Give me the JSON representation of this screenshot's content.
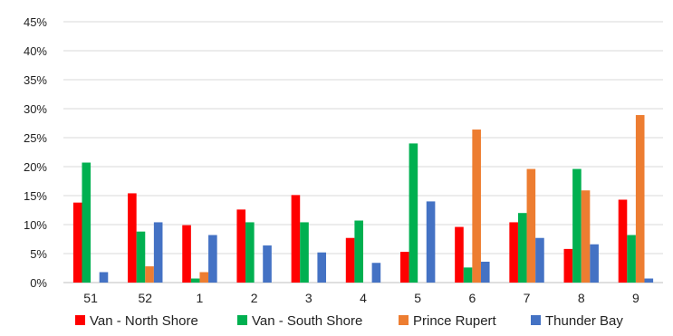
{
  "chart_data": {
    "type": "bar",
    "categories": [
      "51",
      "52",
      "1",
      "2",
      "3",
      "4",
      "5",
      "6",
      "7",
      "8",
      "9"
    ],
    "series": [
      {
        "name": "Van - North Shore",
        "color": "#ff0000",
        "values": [
          13.8,
          15.4,
          9.9,
          12.6,
          15.1,
          7.7,
          5.3,
          9.6,
          10.4,
          5.8,
          14.3
        ]
      },
      {
        "name": "Van - South Shore",
        "color": "#00b050",
        "values": [
          20.7,
          8.8,
          0.7,
          10.4,
          10.4,
          10.7,
          24.0,
          2.6,
          12.0,
          19.6,
          8.2
        ]
      },
      {
        "name": "Prince Rupert",
        "color": "#ed7d31",
        "values": [
          0,
          2.8,
          1.8,
          0,
          0,
          0,
          0,
          26.4,
          19.6,
          15.9,
          28.9
        ]
      },
      {
        "name": "Thunder Bay",
        "color": "#4472c4",
        "values": [
          1.8,
          10.4,
          8.2,
          6.4,
          5.2,
          3.4,
          14.0,
          3.6,
          7.7,
          6.6,
          0.7
        ]
      }
    ],
    "ylim": [
      0,
      45
    ],
    "y_ticks": [
      0,
      5,
      10,
      15,
      20,
      25,
      30,
      35,
      40,
      45
    ],
    "y_tick_labels": [
      "0%",
      "5%",
      "10%",
      "15%",
      "20%",
      "25%",
      "30%",
      "35%",
      "40%",
      "45%"
    ],
    "grid": true,
    "legend_position": "bottom",
    "title": "",
    "xlabel": "",
    "ylabel": ""
  }
}
